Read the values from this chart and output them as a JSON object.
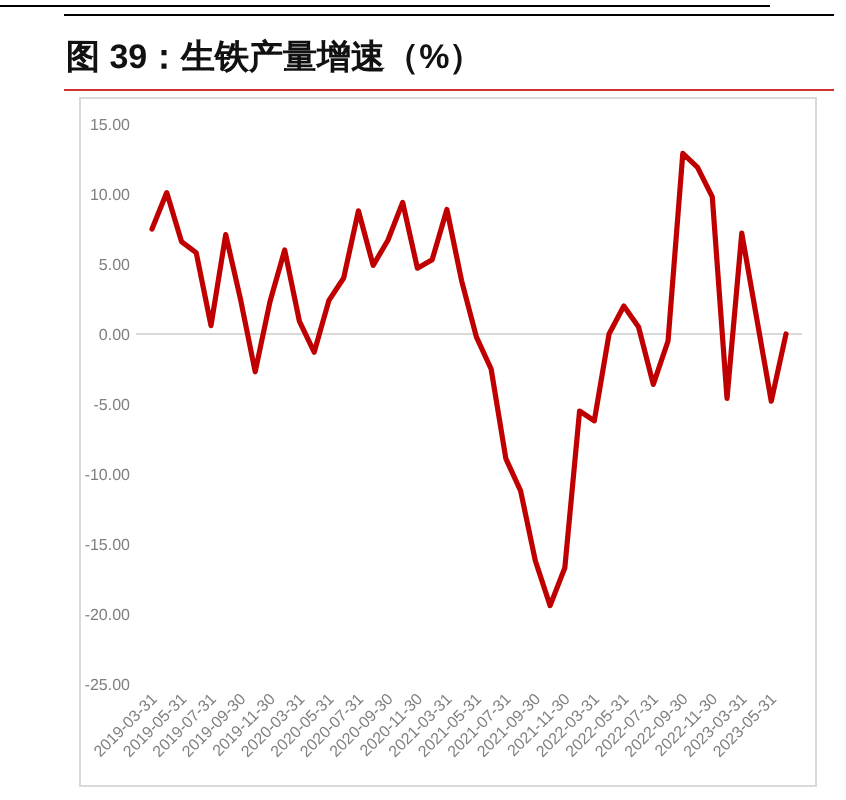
{
  "chart_data": {
    "type": "line",
    "title": "图 39：生铁产量增速（%）",
    "categories": [
      "2019-03-31",
      null,
      "2019-05-31",
      null,
      "2019-07-31",
      null,
      "2019-09-30",
      null,
      "2019-11-30",
      null,
      "2020-03-31",
      null,
      "2020-05-31",
      null,
      "2020-07-31",
      null,
      "2020-09-30",
      null,
      "2020-11-30",
      null,
      "2021-03-31",
      null,
      "2021-05-31",
      null,
      "2021-07-31",
      null,
      "2021-09-30",
      null,
      "2021-11-30",
      null,
      "2022-03-31",
      null,
      "2022-05-31",
      null,
      "2022-07-31",
      null,
      "2022-09-30",
      null,
      "2022-11-30",
      null,
      "2023-03-31",
      null,
      "2023-05-31",
      null
    ],
    "series": [
      {
        "color": "#c00000",
        "values": [
          7.5,
          10.1,
          6.6,
          5.8,
          0.6,
          7.1,
          2.5,
          -2.7,
          2.3,
          6.0,
          0.9,
          -1.3,
          2.4,
          4.0,
          8.8,
          4.9,
          6.7,
          9.4,
          4.7,
          5.3,
          8.9,
          3.8,
          -0.2,
          -2.5,
          -8.9,
          -11.2,
          -16.2,
          -19.4,
          -16.7,
          -5.5,
          -6.2,
          0.0,
          2.0,
          0.5,
          -3.6,
          -0.5,
          12.9,
          11.9,
          9.8,
          -4.6,
          7.2,
          1.2,
          -4.8,
          0.0
        ]
      }
    ],
    "ylim": [
      -25,
      15
    ],
    "yticks": [
      {
        "value": -25,
        "label": "-25.00"
      },
      {
        "value": -20,
        "label": "-20.00"
      },
      {
        "value": -15,
        "label": "-15.00"
      },
      {
        "value": -10,
        "label": "-10.00"
      },
      {
        "value": -5,
        "label": "-5.00"
      },
      {
        "value": 0,
        "label": "0.00"
      },
      {
        "value": 5,
        "label": "5.00"
      },
      {
        "value": 10,
        "label": "10.00"
      },
      {
        "value": 15,
        "label": "15.00"
      }
    ]
  }
}
